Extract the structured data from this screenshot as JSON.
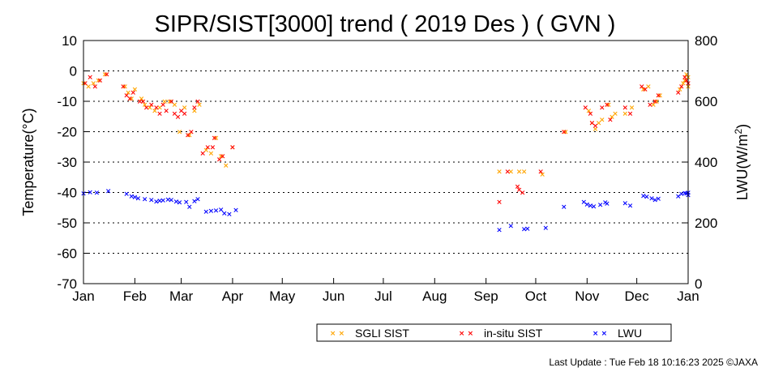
{
  "chart_data": {
    "type": "scatter",
    "title": "SIPR/SIST[3000] trend ( 2019 Des ) ( GVN )",
    "ylabel": "Temperature(°C)",
    "y2label_prefix": "LWU(W/m",
    "y2label_sup": "2",
    "y2label_suffix": ")",
    "x_domain": [
      0,
      365
    ],
    "ylim": [
      -70,
      10
    ],
    "y2lim": [
      0,
      800
    ],
    "y_ticks": [
      10,
      0,
      -10,
      -20,
      -30,
      -40,
      -50,
      -60,
      -70
    ],
    "y2_ticks": [
      800,
      600,
      400,
      200,
      0
    ],
    "gridlines_y": [
      0,
      -10,
      -20,
      -30,
      -40,
      -50,
      -60
    ],
    "grid": "dotted horizontal",
    "legend_position": "bottom-center",
    "x_ticks": [
      {
        "label": "Jan",
        "day": 0
      },
      {
        "label": "Feb",
        "day": 31
      },
      {
        "label": "Mar",
        "day": 59
      },
      {
        "label": "Apr",
        "day": 90
      },
      {
        "label": "May",
        "day": 120
      },
      {
        "label": "Jun",
        "day": 151
      },
      {
        "label": "Jul",
        "day": 181
      },
      {
        "label": "Aug",
        "day": 212
      },
      {
        "label": "Sep",
        "day": 243
      },
      {
        "label": "Oct",
        "day": 273
      },
      {
        "label": "Nov",
        "day": 304
      },
      {
        "label": "Dec",
        "day": 334
      },
      {
        "label": "Jan",
        "day": 365
      }
    ],
    "marker": "×",
    "series": [
      {
        "name": "SGLI SIST",
        "color": "#FFA500",
        "axis": "left",
        "points": [
          [
            0,
            -4
          ],
          [
            3,
            -5
          ],
          [
            6,
            -4
          ],
          [
            9,
            -3
          ],
          [
            13,
            -1
          ],
          [
            25,
            -5
          ],
          [
            27,
            -7
          ],
          [
            29,
            -9
          ],
          [
            31,
            -6
          ],
          [
            35,
            -9
          ],
          [
            37,
            -11
          ],
          [
            40,
            -12
          ],
          [
            43,
            -13
          ],
          [
            46,
            -12
          ],
          [
            49,
            -10
          ],
          [
            52,
            -10
          ],
          [
            55,
            -11
          ],
          [
            58,
            -20
          ],
          [
            61,
            -12
          ],
          [
            64,
            -21
          ],
          [
            67,
            -13
          ],
          [
            70,
            -11
          ],
          [
            74,
            -26
          ],
          [
            77,
            -27
          ],
          [
            80,
            -22
          ],
          [
            83,
            -28
          ],
          [
            86,
            -31
          ],
          [
            90,
            -25
          ],
          [
            251,
            -33
          ],
          [
            258,
            -33
          ],
          [
            263,
            -33
          ],
          [
            266,
            -33
          ],
          [
            277,
            -34
          ],
          [
            291,
            -20
          ],
          [
            305,
            -13
          ],
          [
            307,
            -17
          ],
          [
            309,
            -19
          ],
          [
            311,
            -17
          ],
          [
            313,
            -16
          ],
          [
            317,
            -11
          ],
          [
            319,
            -15
          ],
          [
            321,
            -14
          ],
          [
            327,
            -14
          ],
          [
            331,
            -12
          ],
          [
            338,
            -6
          ],
          [
            341,
            -5
          ],
          [
            344,
            -11
          ],
          [
            346,
            -10
          ],
          [
            348,
            -8
          ],
          [
            360,
            -6
          ],
          [
            362,
            -4
          ],
          [
            363,
            -3
          ],
          [
            364,
            -1
          ],
          [
            365,
            -5
          ],
          [
            365,
            -2
          ]
        ]
      },
      {
        "name": "in-situ SIST",
        "color": "#FF0000",
        "axis": "left",
        "points": [
          [
            1,
            -4
          ],
          [
            4,
            -2
          ],
          [
            7,
            -5
          ],
          [
            10,
            -3
          ],
          [
            14,
            -1
          ],
          [
            24,
            -5
          ],
          [
            26,
            -8
          ],
          [
            28,
            -9
          ],
          [
            30,
            -7
          ],
          [
            34,
            -10
          ],
          [
            36,
            -10
          ],
          [
            38,
            -12
          ],
          [
            41,
            -11
          ],
          [
            44,
            -12
          ],
          [
            46,
            -14
          ],
          [
            48,
            -11
          ],
          [
            50,
            -13
          ],
          [
            53,
            -10
          ],
          [
            55,
            -14
          ],
          [
            57,
            -15
          ],
          [
            59,
            -13
          ],
          [
            61,
            -14
          ],
          [
            63,
            -21
          ],
          [
            65,
            -20
          ],
          [
            67,
            -12
          ],
          [
            69,
            -10
          ],
          [
            72,
            -27
          ],
          [
            75,
            -25
          ],
          [
            78,
            -25
          ],
          [
            79,
            -22
          ],
          [
            82,
            -29
          ],
          [
            84,
            -28
          ],
          [
            90,
            -25
          ],
          [
            251,
            -43
          ],
          [
            256,
            -33
          ],
          [
            262,
            -38
          ],
          [
            263,
            -39
          ],
          [
            265,
            -40
          ],
          [
            276,
            -33
          ],
          [
            290,
            -20
          ],
          [
            303,
            -12
          ],
          [
            306,
            -14
          ],
          [
            307,
            -17
          ],
          [
            309,
            -18
          ],
          [
            313,
            -12
          ],
          [
            316,
            -11
          ],
          [
            318,
            -16
          ],
          [
            327,
            -12
          ],
          [
            330,
            -14
          ],
          [
            337,
            -5
          ],
          [
            339,
            -6
          ],
          [
            342,
            -11
          ],
          [
            345,
            -10
          ],
          [
            347,
            -8
          ],
          [
            359,
            -7
          ],
          [
            361,
            -5
          ],
          [
            363,
            -2
          ],
          [
            364,
            -3
          ],
          [
            365,
            -4
          ]
        ]
      },
      {
        "name": "LWU",
        "color": "#0000FF",
        "axis": "right",
        "points": [
          [
            0,
            298
          ],
          [
            4,
            301
          ],
          [
            8,
            300
          ],
          [
            15,
            305
          ],
          [
            26,
            296
          ],
          [
            29,
            288
          ],
          [
            31,
            285
          ],
          [
            33,
            282
          ],
          [
            37,
            279
          ],
          [
            41,
            276
          ],
          [
            44,
            271
          ],
          [
            46,
            273
          ],
          [
            48,
            275
          ],
          [
            51,
            278
          ],
          [
            53,
            276
          ],
          [
            56,
            271
          ],
          [
            58,
            268
          ],
          [
            62,
            270
          ],
          [
            64,
            253
          ],
          [
            67,
            272
          ],
          [
            69,
            279
          ],
          [
            74,
            237
          ],
          [
            77,
            240
          ],
          [
            80,
            241
          ],
          [
            83,
            244
          ],
          [
            85,
            232
          ],
          [
            88,
            230
          ],
          [
            92,
            243
          ],
          [
            251,
            178
          ],
          [
            258,
            191
          ],
          [
            266,
            180
          ],
          [
            268,
            181
          ],
          [
            279,
            184
          ],
          [
            290,
            253
          ],
          [
            302,
            270
          ],
          [
            304,
            262
          ],
          [
            306,
            258
          ],
          [
            308,
            255
          ],
          [
            312,
            260
          ],
          [
            315,
            268
          ],
          [
            316,
            264
          ],
          [
            327,
            265
          ],
          [
            330,
            258
          ],
          [
            338,
            289
          ],
          [
            340,
            287
          ],
          [
            343,
            282
          ],
          [
            345,
            276
          ],
          [
            347,
            280
          ],
          [
            359,
            288
          ],
          [
            361,
            296
          ],
          [
            363,
            299
          ],
          [
            364,
            297
          ],
          [
            365,
            292
          ],
          [
            365,
            300
          ]
        ]
      }
    ]
  },
  "footer": {
    "last_update": "Last Update : Tue Feb 18 10:16:23 2025 ©JAXA"
  }
}
